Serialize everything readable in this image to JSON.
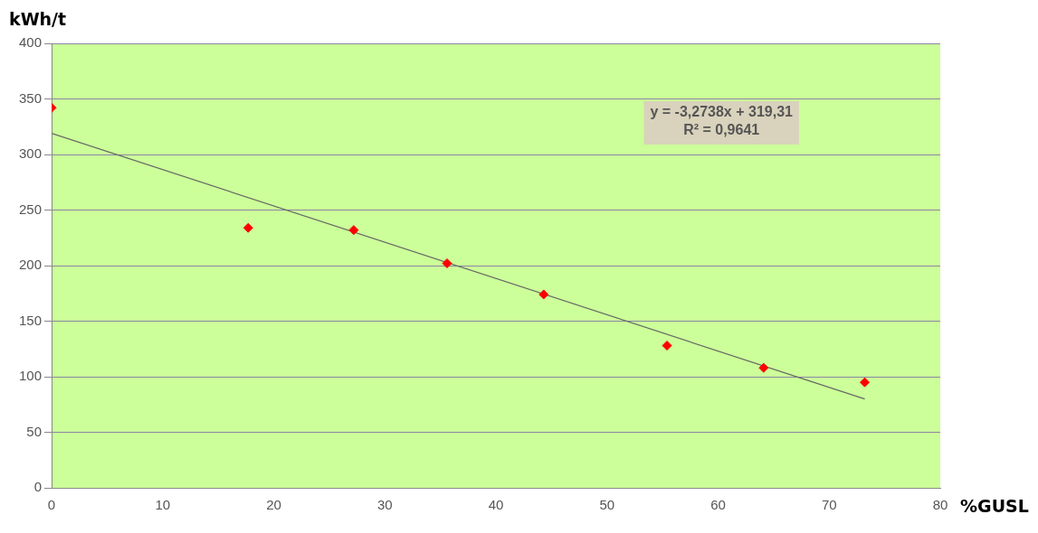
{
  "chart_data": {
    "type": "scatter",
    "xlabel": "%GUSL",
    "ylabel": "kWh/t",
    "x": [
      0,
      17.7,
      27.2,
      35.6,
      44.3,
      55.4,
      64.1,
      73.2
    ],
    "series": [
      {
        "color": "#ff0000",
        "marker": "diamond",
        "values": [
          342,
          234,
          232,
          202,
          174,
          128,
          108,
          95
        ]
      },
      {
        "type": "line",
        "color": "#666666",
        "marker": "none",
        "line_style": "solid",
        "x": [
          0,
          73.2
        ],
        "values": [
          319,
          80
        ]
      }
    ],
    "xlim": [
      0,
      80
    ],
    "xticks": [
      0,
      10,
      20,
      30,
      40,
      50,
      60,
      70,
      80
    ],
    "ylim": [
      0,
      400
    ],
    "yticks": [
      0,
      50,
      100,
      150,
      200,
      250,
      300,
      350,
      400
    ],
    "grid": "y",
    "legend": false,
    "annotations": [
      "y = -3,2738x + 319,31",
      "R² = 0,9641"
    ]
  }
}
